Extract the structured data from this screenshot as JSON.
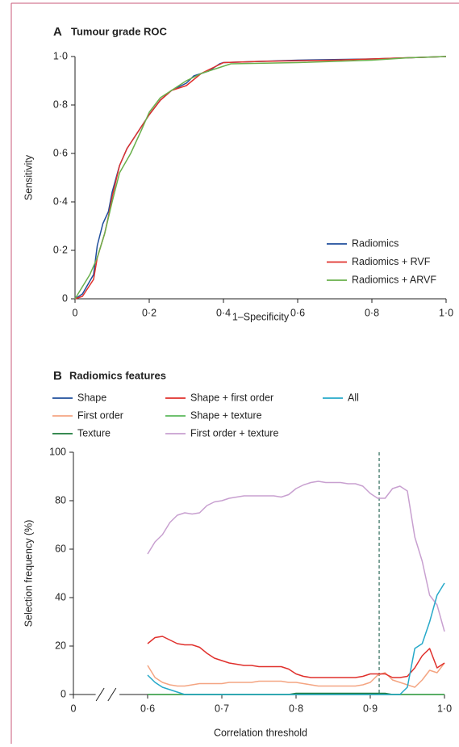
{
  "chart_data": [
    {
      "type": "line",
      "panel": "A",
      "title": "Tumour grade ROC",
      "xlabel": "1–Specificity",
      "ylabel": "Sensitivity",
      "xlim": [
        0,
        1
      ],
      "ylim": [
        0,
        1
      ],
      "xticks": [
        0,
        {
          "value": 0.2,
          "label": "0·2"
        },
        {
          "value": 0.4,
          "label": "0·4"
        },
        {
          "value": 0.6,
          "label": "0·6"
        },
        {
          "value": 0.8,
          "label": "0·8"
        },
        {
          "value": 1,
          "label": "1·0"
        }
      ],
      "yticks": [
        0,
        {
          "value": 0.2,
          "label": "0·2"
        },
        {
          "value": 0.4,
          "label": "0·4"
        },
        {
          "value": 0.6,
          "label": "0·6"
        },
        {
          "value": 0.8,
          "label": "0·8"
        },
        {
          "value": 1,
          "label": "1·0"
        }
      ],
      "legend": "lower right",
      "series": [
        {
          "name": "Radiomics",
          "color": "#1f4e9c",
          "x": [
            0,
            0.02,
            0.05,
            0.06,
            0.075,
            0.09,
            0.1,
            0.12,
            0.14,
            0.17,
            0.2,
            0.23,
            0.26,
            0.3,
            0.32,
            0.36,
            0.39,
            0.4,
            0.5,
            0.6,
            0.8,
            0.9,
            1
          ],
          "values": [
            0,
            0.02,
            0.1,
            0.22,
            0.31,
            0.36,
            0.44,
            0.55,
            0.62,
            0.69,
            0.76,
            0.82,
            0.86,
            0.89,
            0.92,
            0.94,
            0.97,
            0.975,
            0.98,
            0.985,
            0.99,
            0.995,
            1
          ]
        },
        {
          "name": "Radiomics + RVF",
          "color": "#e0302c",
          "x": [
            0,
            0.02,
            0.05,
            0.06,
            0.08,
            0.09,
            0.1,
            0.12,
            0.14,
            0.17,
            0.2,
            0.23,
            0.26,
            0.3,
            0.34,
            0.38,
            0.4,
            0.5,
            0.7,
            0.8,
            1
          ],
          "values": [
            0,
            0.01,
            0.08,
            0.17,
            0.27,
            0.34,
            0.42,
            0.55,
            0.62,
            0.69,
            0.76,
            0.82,
            0.86,
            0.88,
            0.93,
            0.96,
            0.975,
            0.98,
            0.985,
            0.99,
            1
          ]
        },
        {
          "name": "Radiomics + ARVF",
          "color": "#6ab04c",
          "x": [
            0,
            0.02,
            0.04,
            0.06,
            0.08,
            0.1,
            0.12,
            0.15,
            0.18,
            0.2,
            0.23,
            0.27,
            0.3,
            0.34,
            0.38,
            0.42,
            0.6,
            0.8,
            0.9,
            1
          ],
          "values": [
            0,
            0.05,
            0.1,
            0.17,
            0.27,
            0.4,
            0.52,
            0.6,
            0.7,
            0.77,
            0.83,
            0.87,
            0.9,
            0.93,
            0.95,
            0.97,
            0.975,
            0.985,
            0.995,
            1
          ]
        }
      ]
    },
    {
      "type": "line",
      "panel": "B",
      "title": "Radiomics features",
      "xlabel": "Correlation threshold",
      "ylabel": "Selection frequency (%)",
      "xlim": [
        0.6,
        1
      ],
      "ylim": [
        0,
        100
      ],
      "axis_break": true,
      "vline_x": 0.912,
      "xticks": [
        0,
        {
          "value": 0.6,
          "label": "0·6"
        },
        {
          "value": 0.7,
          "label": "0·7"
        },
        {
          "value": 0.8,
          "label": "0·8"
        },
        {
          "value": 0.9,
          "label": "0·9"
        },
        {
          "value": 1,
          "label": "1·0"
        }
      ],
      "yticks": [
        0,
        20,
        40,
        60,
        80,
        100
      ],
      "legend": "top",
      "x": [
        0.6,
        0.61,
        0.62,
        0.63,
        0.64,
        0.65,
        0.66,
        0.67,
        0.68,
        0.69,
        0.7,
        0.71,
        0.72,
        0.73,
        0.74,
        0.75,
        0.76,
        0.77,
        0.78,
        0.79,
        0.8,
        0.81,
        0.82,
        0.83,
        0.84,
        0.85,
        0.86,
        0.87,
        0.88,
        0.89,
        0.9,
        0.91,
        0.92,
        0.93,
        0.94,
        0.95,
        0.96,
        0.97,
        0.98,
        0.99,
        1
      ],
      "series": [
        {
          "name": "Shape",
          "color": "#1f4e9c",
          "values": [
            0,
            0,
            0,
            0,
            0,
            0,
            0,
            0,
            0,
            0,
            0,
            0,
            0,
            0,
            0,
            0,
            0,
            0,
            0,
            0,
            0,
            0,
            0,
            0,
            0,
            0,
            0,
            0,
            0,
            0,
            0,
            0,
            0,
            0,
            0,
            0,
            0,
            0,
            0,
            0,
            0
          ]
        },
        {
          "name": "First order",
          "color": "#f4a582",
          "values": [
            12,
            7,
            5,
            4,
            3.5,
            3.5,
            4,
            4.5,
            4.5,
            4.5,
            4.5,
            5,
            5,
            5,
            5,
            5.5,
            5.5,
            5.5,
            5.5,
            5,
            5,
            4.5,
            4,
            3.5,
            3.5,
            3.5,
            3.5,
            3.5,
            3.5,
            4,
            5,
            8,
            9,
            6,
            5,
            4,
            3,
            6,
            10,
            9,
            13
          ]
        },
        {
          "name": "Texture",
          "color": "#1b7a3a",
          "values": [
            0,
            0,
            0,
            0,
            0,
            0,
            0,
            0,
            0,
            0,
            0,
            0,
            0,
            0,
            0,
            0,
            0,
            0,
            0,
            0,
            0.5,
            0.5,
            0.5,
            0.5,
            0.5,
            0.5,
            0.5,
            0.5,
            0.5,
            0.5,
            0.5,
            0.5,
            0.5,
            0,
            0,
            0,
            0,
            0,
            0,
            0,
            0
          ]
        },
        {
          "name": "Shape + first order",
          "color": "#e0302c",
          "values": [
            21,
            23.5,
            24,
            22.5,
            21,
            20.5,
            20.5,
            19.5,
            17,
            15,
            14,
            13,
            12.5,
            12,
            12,
            11.5,
            11.5,
            11.5,
            11.5,
            10.5,
            8.5,
            7.5,
            7,
            7,
            7,
            7,
            7,
            7,
            7,
            7.5,
            8.5,
            8.5,
            8.5,
            7,
            7,
            7.5,
            11,
            16,
            19,
            11,
            13
          ]
        },
        {
          "name": "Shape + texture",
          "color": "#5cb85c",
          "values": [
            0,
            0,
            0,
            0,
            0,
            0,
            0,
            0,
            0,
            0,
            0,
            0,
            0,
            0,
            0,
            0,
            0,
            0,
            0,
            0,
            0,
            0,
            0,
            0,
            0,
            0,
            0,
            0,
            0,
            0,
            0,
            0,
            0,
            0,
            0,
            0,
            0,
            0,
            0,
            0,
            0
          ]
        },
        {
          "name": "First order + texture",
          "color": "#c8a0d0",
          "values": [
            58,
            63,
            66,
            71,
            74,
            75,
            74.5,
            75,
            78,
            79.5,
            80,
            81,
            81.5,
            82,
            82,
            82,
            82,
            82,
            81.5,
            82.5,
            85,
            86.5,
            87.5,
            88,
            87.5,
            87.5,
            87.5,
            87,
            87,
            86,
            83,
            81,
            81,
            85,
            86,
            84,
            65,
            55,
            41,
            37,
            26
          ]
        },
        {
          "name": "All",
          "color": "#26a9c9",
          "values": [
            8,
            5,
            3,
            2,
            1,
            0,
            0,
            0,
            0,
            0,
            0,
            0,
            0,
            0,
            0,
            0,
            0,
            0,
            0,
            0,
            0,
            0,
            0,
            0,
            0,
            0,
            0,
            0,
            0,
            0,
            0,
            0,
            0,
            0,
            0,
            3,
            19,
            21,
            30,
            41,
            46
          ]
        }
      ]
    }
  ]
}
